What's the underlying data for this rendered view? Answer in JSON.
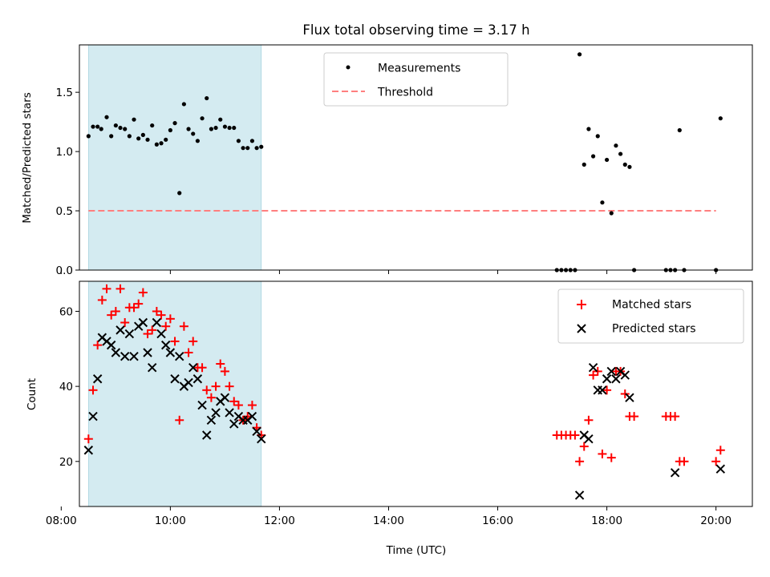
{
  "chart_data": [
    {
      "type": "scatter",
      "title": "Flux total observing time = 3.17 h",
      "xlabel": "",
      "ylabel": "Matched/Predicted stars",
      "xlim": [
        "08:20",
        "20:40"
      ],
      "ylim": [
        0,
        1.9
      ],
      "yticks": [
        0.0,
        0.5,
        1.0,
        1.5
      ],
      "shaded_interval": [
        "08:30",
        "11:40"
      ],
      "shade_color": "#d4ebf1",
      "legend_position": "top-center",
      "legend": [
        {
          "label": "Measurements",
          "marker": "dot",
          "color": "#000000"
        },
        {
          "label": "Threshold",
          "marker": "dashed-line",
          "color": "#ff7f7f"
        }
      ],
      "threshold": {
        "value": 0.5,
        "x_range": [
          "08:30",
          "20:00"
        ]
      },
      "series": [
        {
          "name": "Measurements",
          "points": [
            [
              "08:30",
              1.13
            ],
            [
              "08:35",
              1.21
            ],
            [
              "08:40",
              1.21
            ],
            [
              "08:44",
              1.19
            ],
            [
              "08:50",
              1.29
            ],
            [
              "08:55",
              1.13
            ],
            [
              "09:00",
              1.22
            ],
            [
              "09:05",
              1.2
            ],
            [
              "09:10",
              1.19
            ],
            [
              "09:15",
              1.13
            ],
            [
              "09:20",
              1.27
            ],
            [
              "09:25",
              1.11
            ],
            [
              "09:30",
              1.14
            ],
            [
              "09:35",
              1.1
            ],
            [
              "09:40",
              1.22
            ],
            [
              "09:45",
              1.06
            ],
            [
              "09:50",
              1.07
            ],
            [
              "09:55",
              1.1
            ],
            [
              "10:00",
              1.18
            ],
            [
              "10:05",
              1.24
            ],
            [
              "10:10",
              0.65
            ],
            [
              "10:15",
              1.4
            ],
            [
              "10:20",
              1.19
            ],
            [
              "10:25",
              1.15
            ],
            [
              "10:30",
              1.09
            ],
            [
              "10:35",
              1.28
            ],
            [
              "10:40",
              1.45
            ],
            [
              "10:45",
              1.19
            ],
            [
              "10:50",
              1.2
            ],
            [
              "10:55",
              1.27
            ],
            [
              "11:00",
              1.21
            ],
            [
              "11:05",
              1.2
            ],
            [
              "11:10",
              1.2
            ],
            [
              "11:15",
              1.09
            ],
            [
              "11:20",
              1.03
            ],
            [
              "11:25",
              1.03
            ],
            [
              "11:30",
              1.09
            ],
            [
              "11:35",
              1.03
            ],
            [
              "11:40",
              1.04
            ],
            [
              "17:05",
              0.0
            ],
            [
              "17:10",
              0.0
            ],
            [
              "17:15",
              0.0
            ],
            [
              "17:20",
              0.0
            ],
            [
              "17:25",
              0.0
            ],
            [
              "17:30",
              1.82
            ],
            [
              "17:35",
              0.89
            ],
            [
              "17:40",
              1.19
            ],
            [
              "17:45",
              0.96
            ],
            [
              "17:50",
              1.13
            ],
            [
              "17:55",
              0.57
            ],
            [
              "18:00",
              0.93
            ],
            [
              "18:05",
              0.48
            ],
            [
              "18:10",
              1.05
            ],
            [
              "18:15",
              0.98
            ],
            [
              "18:20",
              0.89
            ],
            [
              "18:25",
              0.87
            ],
            [
              "18:30",
              0.0
            ],
            [
              "19:05",
              0.0
            ],
            [
              "19:10",
              0.0
            ],
            [
              "19:15",
              0.0
            ],
            [
              "19:20",
              1.18
            ],
            [
              "19:25",
              0.0
            ],
            [
              "20:00",
              0.0
            ],
            [
              "20:05",
              1.28
            ]
          ]
        }
      ]
    },
    {
      "type": "scatter",
      "title": "",
      "xlabel": "Time (UTC)",
      "ylabel": "Count",
      "xlim": [
        "08:20",
        "20:40"
      ],
      "xticks": [
        "08:00",
        "10:00",
        "12:00",
        "14:00",
        "16:00",
        "18:00",
        "20:00"
      ],
      "ylim": [
        8,
        68
      ],
      "yticks": [
        20,
        40,
        60
      ],
      "shaded_interval": [
        "08:30",
        "11:40"
      ],
      "legend_position": "top-right",
      "legend": [
        {
          "label": "Matched stars",
          "marker": "plus",
          "color": "#ff0000"
        },
        {
          "label": "Predicted stars",
          "marker": "x",
          "color": "#000000"
        }
      ],
      "series": [
        {
          "name": "Matched stars",
          "marker": "plus",
          "color": "#ff0000",
          "points": [
            [
              "08:30",
              26
            ],
            [
              "08:35",
              39
            ],
            [
              "08:40",
              51
            ],
            [
              "08:45",
              63
            ],
            [
              "08:50",
              66
            ],
            [
              "08:55",
              59
            ],
            [
              "09:00",
              60
            ],
            [
              "09:05",
              66
            ],
            [
              "09:10",
              57
            ],
            [
              "09:15",
              61
            ],
            [
              "09:20",
              61
            ],
            [
              "09:25",
              62
            ],
            [
              "09:30",
              65
            ],
            [
              "09:35",
              54
            ],
            [
              "09:40",
              55
            ],
            [
              "09:45",
              60
            ],
            [
              "09:50",
              59
            ],
            [
              "09:55",
              56
            ],
            [
              "10:00",
              58
            ],
            [
              "10:05",
              52
            ],
            [
              "10:10",
              31
            ],
            [
              "10:15",
              56
            ],
            [
              "10:20",
              49
            ],
            [
              "10:25",
              52
            ],
            [
              "10:30",
              45
            ],
            [
              "10:35",
              45
            ],
            [
              "10:40",
              39
            ],
            [
              "10:45",
              37
            ],
            [
              "10:50",
              40
            ],
            [
              "10:55",
              46
            ],
            [
              "11:00",
              44
            ],
            [
              "11:05",
              40
            ],
            [
              "11:10",
              36
            ],
            [
              "11:15",
              35
            ],
            [
              "11:20",
              31
            ],
            [
              "11:25",
              32
            ],
            [
              "11:30",
              35
            ],
            [
              "11:35",
              29
            ],
            [
              "11:40",
              27
            ],
            [
              "17:05",
              27
            ],
            [
              "17:10",
              27
            ],
            [
              "17:15",
              27
            ],
            [
              "17:20",
              27
            ],
            [
              "17:25",
              27
            ],
            [
              "17:30",
              20
            ],
            [
              "17:35",
              24
            ],
            [
              "17:40",
              31
            ],
            [
              "17:45",
              43
            ],
            [
              "17:50",
              44
            ],
            [
              "17:55",
              22
            ],
            [
              "18:00",
              39
            ],
            [
              "18:05",
              21
            ],
            [
              "18:10",
              44
            ],
            [
              "18:15",
              44
            ],
            [
              "18:20",
              38
            ],
            [
              "18:25",
              32
            ],
            [
              "18:30",
              32
            ],
            [
              "19:05",
              32
            ],
            [
              "19:10",
              32
            ],
            [
              "19:15",
              32
            ],
            [
              "19:20",
              20
            ],
            [
              "19:25",
              20
            ],
            [
              "20:00",
              20
            ],
            [
              "20:05",
              23
            ]
          ]
        },
        {
          "name": "Predicted stars",
          "marker": "x",
          "color": "#000000",
          "points": [
            [
              "08:30",
              23
            ],
            [
              "08:35",
              32
            ],
            [
              "08:40",
              42
            ],
            [
              "08:45",
              53
            ],
            [
              "08:50",
              52
            ],
            [
              "08:55",
              51
            ],
            [
              "09:00",
              49
            ],
            [
              "09:05",
              55
            ],
            [
              "09:10",
              48
            ],
            [
              "09:15",
              54
            ],
            [
              "09:20",
              48
            ],
            [
              "09:25",
              56
            ],
            [
              "09:30",
              57
            ],
            [
              "09:35",
              49
            ],
            [
              "09:40",
              45
            ],
            [
              "09:45",
              57
            ],
            [
              "09:50",
              54
            ],
            [
              "09:55",
              51
            ],
            [
              "10:00",
              49
            ],
            [
              "10:05",
              42
            ],
            [
              "10:10",
              48
            ],
            [
              "10:15",
              40
            ],
            [
              "10:20",
              41
            ],
            [
              "10:25",
              45
            ],
            [
              "10:30",
              42
            ],
            [
              "10:35",
              35
            ],
            [
              "10:40",
              27
            ],
            [
              "10:45",
              31
            ],
            [
              "10:50",
              33
            ],
            [
              "10:55",
              36
            ],
            [
              "11:00",
              37
            ],
            [
              "11:05",
              33
            ],
            [
              "11:10",
              30
            ],
            [
              "11:15",
              32
            ],
            [
              "11:20",
              31
            ],
            [
              "11:25",
              31
            ],
            [
              "11:30",
              32
            ],
            [
              "11:35",
              28
            ],
            [
              "11:40",
              26
            ],
            [
              "17:30",
              11
            ],
            [
              "17:35",
              27
            ],
            [
              "17:40",
              26
            ],
            [
              "17:45",
              45
            ],
            [
              "17:50",
              39
            ],
            [
              "17:55",
              39
            ],
            [
              "18:00",
              42
            ],
            [
              "18:05",
              44
            ],
            [
              "18:10",
              42
            ],
            [
              "18:15",
              44
            ],
            [
              "18:20",
              43
            ],
            [
              "18:25",
              37
            ],
            [
              "19:15",
              17
            ],
            [
              "20:05",
              18
            ]
          ]
        }
      ]
    }
  ]
}
